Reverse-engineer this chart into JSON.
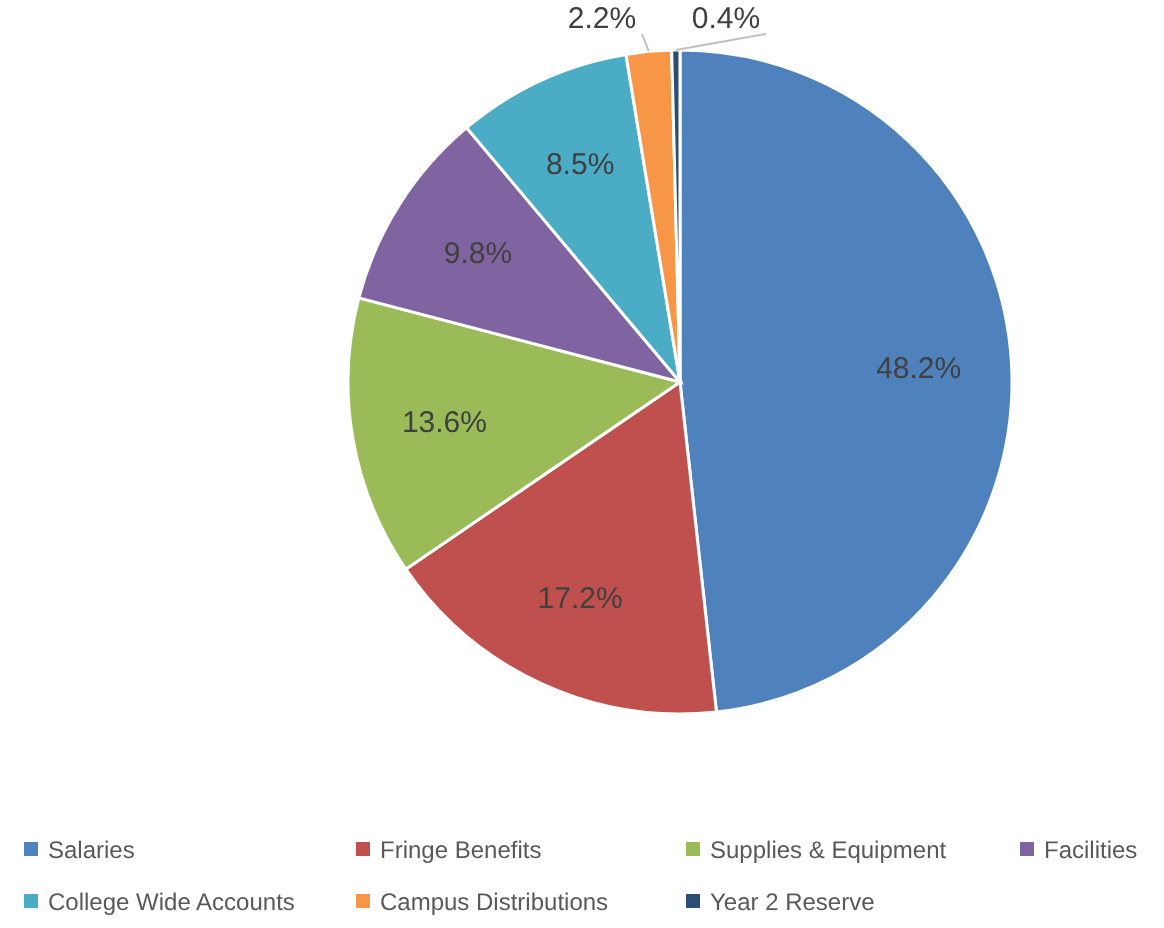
{
  "chart_data": {
    "type": "pie",
    "categories": [
      "Salaries",
      "Fringe Benefits",
      "Supplies & Equipment",
      "Facilities",
      "College Wide Accounts",
      "Campus Distributions",
      "Year 2 Reserve"
    ],
    "values": [
      48.2,
      17.2,
      13.6,
      9.8,
      8.5,
      2.2,
      0.4
    ],
    "colors": [
      "#4f81bd",
      "#c0504d",
      "#9bbb59",
      "#8064a2",
      "#4bacc6",
      "#f79646",
      "#2c4d75"
    ],
    "value_labels": [
      "48.2%",
      "17.2%",
      "13.6%",
      "9.8%",
      "8.5%",
      "2.2%",
      "0.4%"
    ],
    "legend": "bottom"
  }
}
